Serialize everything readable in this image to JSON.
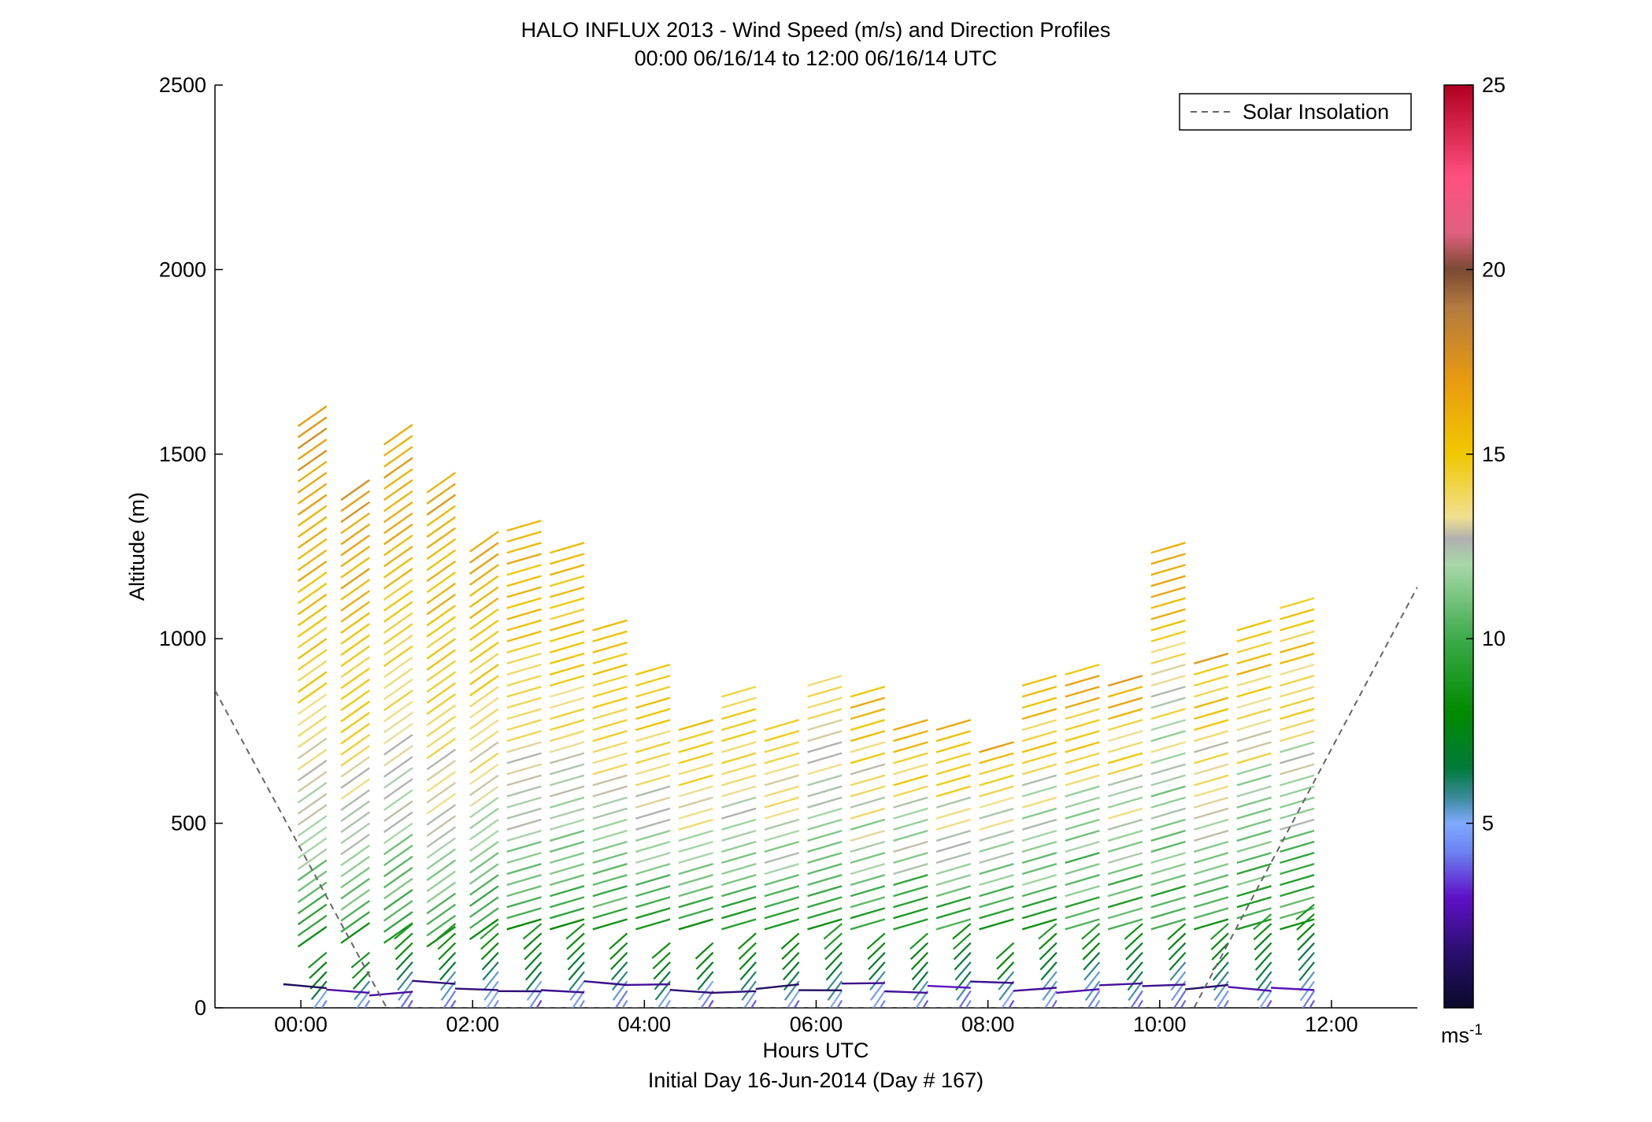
{
  "chart_data": {
    "type": "wind-profile-barbs",
    "title": "HALO INFLUX 2013 - Wind Speed (m/s) and Direction Profiles",
    "subtitle": "00:00 06/16/14 to 12:00 06/16/14  UTC",
    "xlabel": "Hours UTC",
    "xlabel2": "Initial Day 16-Jun-2014 (Day # 167)",
    "ylabel": "Altitude (m)",
    "xlim_hours": [
      -1.0,
      13.0
    ],
    "ylim": [
      0,
      2500
    ],
    "x_ticks": [
      {
        "hour": 0,
        "label": "00:00"
      },
      {
        "hour": 2,
        "label": "02:00"
      },
      {
        "hour": 4,
        "label": "04:00"
      },
      {
        "hour": 6,
        "label": "06:00"
      },
      {
        "hour": 8,
        "label": "08:00"
      },
      {
        "hour": 10,
        "label": "10:00"
      },
      {
        "hour": 12,
        "label": "12:00"
      }
    ],
    "y_ticks": [
      0,
      500,
      1000,
      1500,
      2000,
      2500
    ],
    "colorbar": {
      "min": 0,
      "max": 25,
      "ticks": [
        5,
        10,
        15,
        20,
        25
      ],
      "unit_base": "ms",
      "unit_exp": "-1",
      "stops": [
        {
          "v": 0,
          "c": "#0a0a2a"
        },
        {
          "v": 1.5,
          "c": "#2a0f6e"
        },
        {
          "v": 3,
          "c": "#6010c8"
        },
        {
          "v": 4.2,
          "c": "#6a80f0"
        },
        {
          "v": 5,
          "c": "#80aaff"
        },
        {
          "v": 5.7,
          "c": "#3a8a9a"
        },
        {
          "v": 6.5,
          "c": "#007a3a"
        },
        {
          "v": 8,
          "c": "#008a00"
        },
        {
          "v": 10,
          "c": "#3caa4a"
        },
        {
          "v": 12,
          "c": "#a8d8a8"
        },
        {
          "v": 12.7,
          "c": "#b0b0b0"
        },
        {
          "v": 13.3,
          "c": "#f0e090"
        },
        {
          "v": 15,
          "c": "#f0c800"
        },
        {
          "v": 17,
          "c": "#e89a10"
        },
        {
          "v": 19,
          "c": "#b27a40"
        },
        {
          "v": 20,
          "c": "#7a4a32"
        },
        {
          "v": 21,
          "c": "#e06080"
        },
        {
          "v": 22.5,
          "c": "#ff5080"
        },
        {
          "v": 25,
          "c": "#b00020"
        }
      ]
    },
    "legend": {
      "label": "Solar Insolation",
      "placement": "top-right",
      "style": "dashed",
      "color": "#666666"
    },
    "solar_insolation_line": {
      "x_hours": [
        -1.0,
        1.0,
        10.4,
        13.0
      ],
      "altitude_equiv": [
        860,
        0,
        0,
        1140
      ]
    },
    "profiles": [
      {
        "t": 0.3,
        "top": 1650,
        "bottom": 220,
        "low_top": 150
      },
      {
        "t": 0.8,
        "top": 1450,
        "bottom": 230,
        "low_top": 150
      },
      {
        "t": 1.3,
        "top": 1600,
        "bottom": 230,
        "low_top": 230
      },
      {
        "t": 1.8,
        "top": 1450,
        "bottom": 220,
        "low_top": 230
      },
      {
        "t": 2.3,
        "top": 1300,
        "bottom": 240,
        "low_top": 230
      },
      {
        "t": 2.8,
        "top": 1330,
        "bottom": 240,
        "low_top": 230
      },
      {
        "t": 3.3,
        "top": 1260,
        "bottom": 240,
        "low_top": 230
      },
      {
        "t": 3.8,
        "top": 1060,
        "bottom": 240,
        "low_top": 220
      },
      {
        "t": 4.3,
        "top": 940,
        "bottom": 240,
        "low_top": 180
      },
      {
        "t": 4.8,
        "top": 800,
        "bottom": 240,
        "low_top": 200
      },
      {
        "t": 5.3,
        "top": 870,
        "bottom": 240,
        "low_top": 220
      },
      {
        "t": 5.8,
        "top": 800,
        "bottom": 240,
        "low_top": 220
      },
      {
        "t": 6.3,
        "top": 900,
        "bottom": 240,
        "low_top": 230
      },
      {
        "t": 6.8,
        "top": 870,
        "bottom": 240,
        "low_top": 220
      },
      {
        "t": 7.3,
        "top": 800,
        "bottom": 240,
        "low_top": 220
      },
      {
        "t": 7.8,
        "top": 800,
        "bottom": 240,
        "low_top": 230
      },
      {
        "t": 8.3,
        "top": 730,
        "bottom": 240,
        "low_top": 200
      },
      {
        "t": 8.8,
        "top": 900,
        "bottom": 240,
        "low_top": 230
      },
      {
        "t": 9.3,
        "top": 930,
        "bottom": 240,
        "low_top": 240
      },
      {
        "t": 9.8,
        "top": 900,
        "bottom": 240,
        "low_top": 240
      },
      {
        "t": 10.3,
        "top": 1260,
        "bottom": 240,
        "low_top": 250
      },
      {
        "t": 10.8,
        "top": 960,
        "bottom": 240,
        "low_top": 250
      },
      {
        "t": 11.3,
        "top": 1060,
        "bottom": 240,
        "low_top": 260
      },
      {
        "t": 11.8,
        "top": 1130,
        "bottom": 240,
        "low_top": 280
      }
    ],
    "speed_profile_model": {
      "note_hidden": false,
      "early_speed_top": 17.5,
      "late_speed_top": 11.5
    }
  }
}
